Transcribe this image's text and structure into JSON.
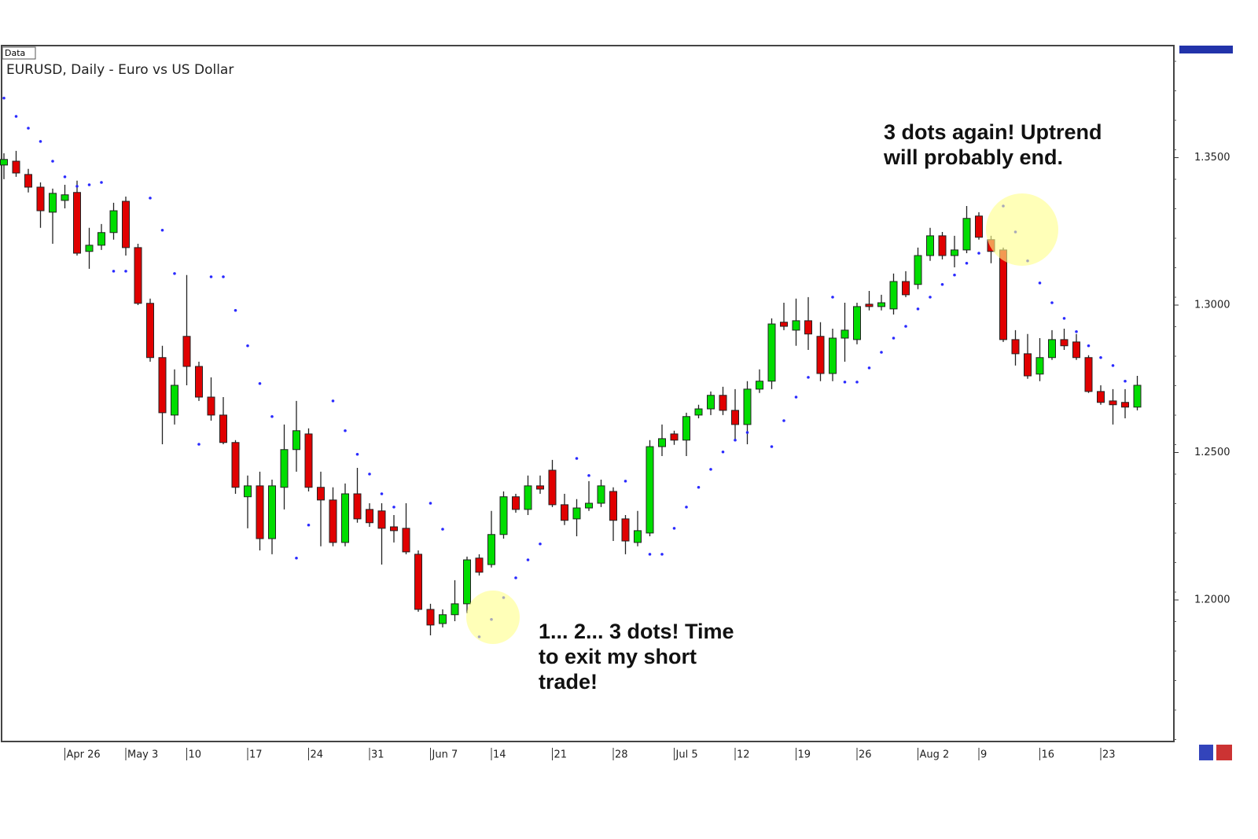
{
  "chart_data": {
    "type": "candlestick",
    "title": "EURUSD, Daily - Euro vs US Dollar",
    "tag": "Data",
    "categories": [
      null,
      null,
      null,
      null,
      null,
      "Apr 26",
      null,
      null,
      null,
      null,
      "May 3",
      null,
      null,
      null,
      null,
      "10",
      null,
      null,
      null,
      null,
      "17",
      null,
      null,
      null,
      null,
      "24",
      null,
      null,
      null,
      null,
      "31",
      null,
      null,
      null,
      null,
      "Jun 7",
      null,
      null,
      null,
      null,
      "14",
      null,
      null,
      null,
      null,
      "21",
      null,
      null,
      null,
      null,
      "28",
      null,
      null,
      null,
      null,
      "Jul 5",
      null,
      null,
      null,
      null,
      "12",
      null,
      null,
      null,
      null,
      "19",
      null,
      null,
      null,
      null,
      "26",
      null,
      null,
      null,
      null,
      "Aug 2",
      null,
      null,
      null,
      null,
      "9",
      null,
      null,
      null,
      null,
      "16",
      null,
      null,
      null,
      null,
      "23",
      null,
      null,
      null
    ],
    "open": [
      1.3475,
      1.3488,
      1.3443,
      1.34,
      1.3315,
      1.3355,
      1.3382,
      1.3182,
      1.3203,
      1.3246,
      1.3352,
      1.3195,
      1.3006,
      1.2822,
      1.2627,
      1.2894,
      1.2792,
      1.2688,
      1.2627,
      1.2534,
      1.235,
      1.2387,
      1.2208,
      1.2382,
      1.251,
      1.2563,
      1.2382,
      1.2339,
      1.2195,
      1.236,
      1.2307,
      1.2302,
      1.2248,
      1.2243,
      1.2155,
      1.1968,
      1.192,
      1.195,
      1.1987,
      1.2142,
      1.212,
      1.2222,
      1.235,
      1.2307,
      1.2387,
      1.244,
      1.2323,
      1.2275,
      1.2312,
      1.2328,
      1.2368,
      1.2275,
      1.2195,
      1.2227,
      1.252,
      1.2563,
      1.2542,
      1.2627,
      1.2648,
      1.2694,
      1.2643,
      1.2595,
      1.2715,
      1.2742,
      1.2942,
      1.2915,
      1.2947,
      1.2894,
      1.2768,
      1.2888,
      1.2883,
      1.3003,
      1.2995,
      1.2987,
      1.308,
      1.307,
      1.3168,
      1.3235,
      1.3168,
      1.3187,
      1.3302,
      1.3222,
      1.3187,
      1.2883,
      1.2835,
      1.2766,
      1.2822,
      1.2883,
      1.2875,
      1.2822,
      1.2707,
      1.2675,
      1.267,
      1.2654
    ],
    "high": [
      1.3515,
      1.3523,
      1.3462,
      1.3416,
      1.3395,
      1.3408,
      1.3422,
      1.3262,
      1.3275,
      1.3347,
      1.3368,
      1.3208,
      1.3022,
      1.2862,
      1.2782,
      1.3102,
      1.2808,
      1.2755,
      1.2688,
      1.2542,
      1.2422,
      1.2435,
      1.2408,
      1.2595,
      1.2675,
      1.2582,
      1.2435,
      1.2382,
      1.2395,
      1.2448,
      1.2328,
      1.2328,
      1.2288,
      1.2328,
      1.2168,
      1.1987,
      1.1968,
      1.2067,
      1.2147,
      1.2155,
      1.2302,
      1.2368,
      1.236,
      1.2422,
      1.2422,
      1.2475,
      1.236,
      1.2342,
      1.2403,
      1.2408,
      1.2382,
      1.2288,
      1.2302,
      1.2542,
      1.2595,
      1.2574,
      1.2635,
      1.2662,
      1.2707,
      1.2723,
      1.2715,
      1.2742,
      1.2782,
      1.2955,
      1.3008,
      1.3022,
      1.3027,
      1.2942,
      1.292,
      1.3008,
      1.3008,
      1.3048,
      1.3035,
      1.3107,
      1.3115,
      1.3195,
      1.3262,
      1.3248,
      1.3235,
      1.3336,
      1.3315,
      1.3235,
      1.3195,
      1.2915,
      1.2902,
      1.2888,
      1.2915,
      1.292,
      1.2902,
      1.283,
      1.2728,
      1.2715,
      1.2715,
      1.276
    ],
    "low": [
      1.3427,
      1.3435,
      1.3382,
      1.3262,
      1.3208,
      1.3328,
      1.3168,
      1.3123,
      1.3187,
      1.3222,
      1.3168,
      1.3,
      1.2808,
      1.2528,
      1.2595,
      1.2728,
      1.2675,
      1.2608,
      1.2528,
      1.236,
      1.2243,
      1.2168,
      1.2155,
      1.2307,
      1.2435,
      1.2368,
      1.2182,
      1.2182,
      1.2182,
      1.2262,
      1.2248,
      1.212,
      1.2195,
      1.2155,
      1.196,
      1.188,
      1.1907,
      1.1928,
      1.1955,
      1.2083,
      1.211,
      1.2208,
      1.2296,
      1.2288,
      1.236,
      1.2315,
      1.2254,
      1.2216,
      1.2302,
      1.2315,
      1.22,
      1.2155,
      1.2182,
      1.2216,
      1.2488,
      1.2526,
      1.2488,
      1.2616,
      1.2627,
      1.2627,
      1.2542,
      1.2528,
      1.2702,
      1.2715,
      1.2915,
      1.2862,
      1.2848,
      1.2742,
      1.2742,
      1.2808,
      1.2867,
      1.2982,
      1.2982,
      1.2968,
      1.3027,
      1.3054,
      1.315,
      1.3155,
      1.3128,
      1.3176,
      1.3222,
      1.3142,
      1.2875,
      1.2795,
      1.275,
      1.2742,
      1.2814,
      1.2848,
      1.2814,
      1.2702,
      1.2662,
      1.2595,
      1.2616,
      1.2643
    ],
    "close": [
      1.3494,
      1.3448,
      1.34,
      1.332,
      1.3379,
      1.3374,
      1.3176,
      1.3203,
      1.3246,
      1.332,
      1.3195,
      1.3006,
      1.2822,
      1.2635,
      1.2728,
      1.2792,
      1.2688,
      1.2627,
      1.2534,
      1.2382,
      1.2387,
      1.2208,
      1.2387,
      1.251,
      1.2574,
      1.2382,
      1.2339,
      1.2195,
      1.236,
      1.2275,
      1.2262,
      1.2243,
      1.2235,
      1.2163,
      1.1968,
      1.1915,
      1.195,
      1.1987,
      1.2136,
      1.2094,
      1.2222,
      1.235,
      1.2307,
      1.2387,
      1.2376,
      1.2323,
      1.227,
      1.2312,
      1.2328,
      1.2387,
      1.227,
      1.22,
      1.2235,
      1.252,
      1.2547,
      1.2542,
      1.2622,
      1.2648,
      1.2694,
      1.2643,
      1.2595,
      1.2715,
      1.2742,
      1.2936,
      1.2928,
      1.2947,
      1.2902,
      1.2768,
      1.2888,
      1.2915,
      1.2995,
      1.2995,
      1.3008,
      1.308,
      1.3035,
      1.3168,
      1.3235,
      1.3168,
      1.3187,
      1.3294,
      1.323,
      1.3182,
      1.2883,
      1.2835,
      1.276,
      1.2822,
      1.2883,
      1.2862,
      1.2822,
      1.2707,
      1.267,
      1.2662,
      1.2654,
      1.2728
    ],
    "sar": [
      1.3702,
      1.364,
      1.36,
      1.3555,
      1.3488,
      1.3435,
      1.3403,
      1.3408,
      1.3416,
      1.3115,
      1.3115,
      null,
      1.3363,
      1.3254,
      1.3107,
      null,
      1.2528,
      1.3096,
      1.3096,
      1.2982,
      1.2862,
      1.2734,
      1.2622,
      null,
      1.2142,
      1.2254,
      null,
      1.2675,
      1.2574,
      1.2494,
      1.2427,
      1.236,
      1.2315,
      null,
      null,
      1.2328,
      1.224,
      null,
      null,
      1.1875,
      1.1934,
      1.2008,
      1.2075,
      1.2136,
      1.219,
      null,
      null,
      1.248,
      1.2422,
      null,
      null,
      1.2403,
      null,
      1.2155,
      1.2155,
      1.2243,
      1.2315,
      1.2382,
      1.2443,
      1.2502,
      1.2542,
      1.2568,
      null,
      1.252,
      1.2608,
      1.2688,
      1.2755,
      null,
      1.3027,
      1.2739,
      1.2739,
      1.2787,
      1.284,
      1.2888,
      1.2928,
      1.2987,
      1.3027,
      1.307,
      1.3102,
      1.3142,
      1.3176,
      null,
      1.3336,
      1.3248,
      1.315,
      1.3075,
      1.3008,
      1.2955,
      1.291,
      1.2862,
      1.2822,
      1.2795,
      1.2742,
      null
    ],
    "up_color": "#00dd00",
    "down_color": "#e00000",
    "sar_color": "#2a2aff",
    "ylim": [
      1.152,
      1.388
    ],
    "yticks": [
      {
        "value": 1.2,
        "label": "1.2000"
      },
      {
        "value": 1.25,
        "label": "1.2500"
      },
      {
        "value": 1.3,
        "label": "1.3000"
      },
      {
        "value": 1.35,
        "label": "1.3500"
      }
    ],
    "annotations": [
      {
        "lines": [
          "3 dots again! Uptrend",
          "will probably end."
        ]
      },
      {
        "lines": [
          "1... 2... 3 dots! Time",
          "to exit my short",
          "trade!"
        ]
      }
    ]
  }
}
